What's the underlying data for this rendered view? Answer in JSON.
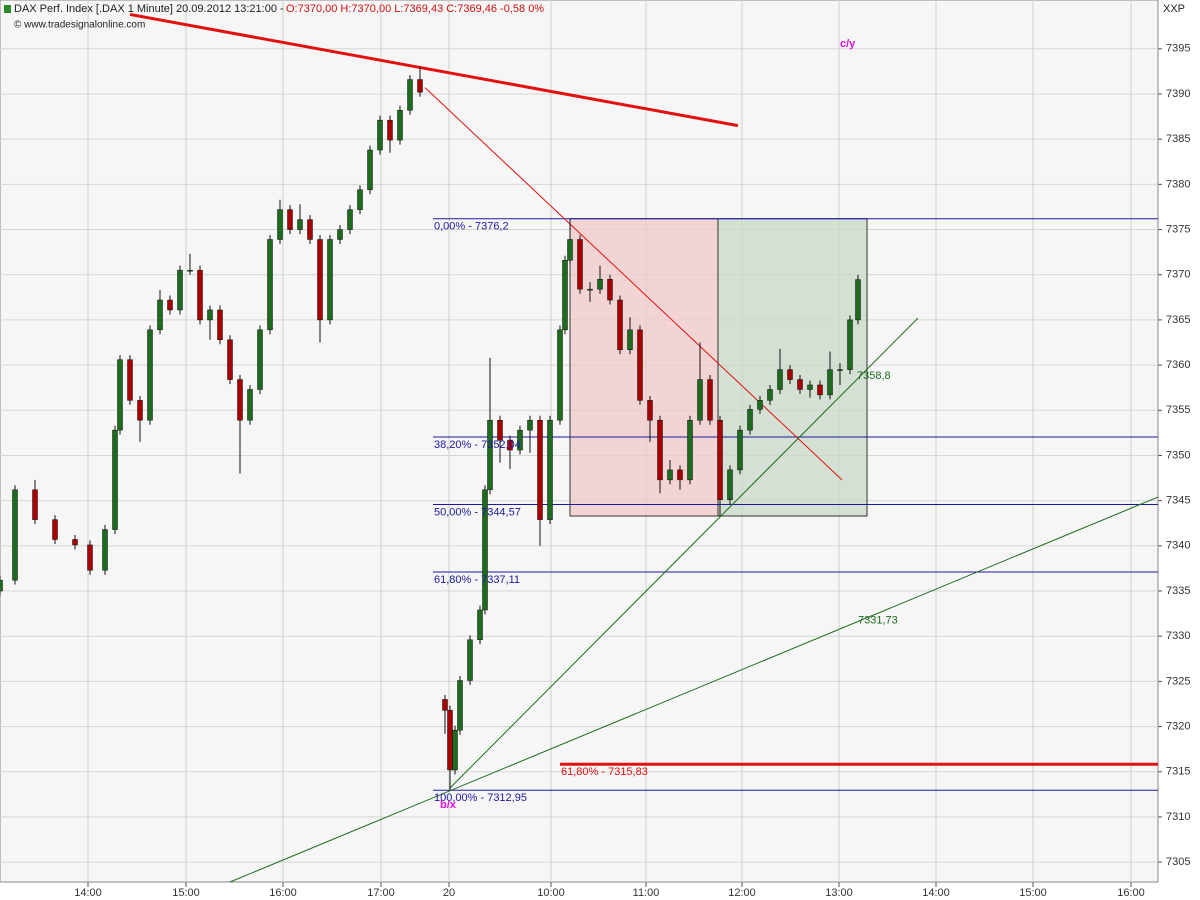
{
  "chart_data": {
    "type": "candlestick",
    "title": "DAX Perf. Index [.DAX  1 Minute] 20.09.2012 13:21:00 -",
    "subtitle": "O:7370,00 H:7370,00 L:7369,43 C:7369,46 -0,58 0%",
    "source": "© www.tradesignalonline.com",
    "symbol": "XXP",
    "xlim": [
      0,
      289.5
    ],
    "ylim": [
      7302.8,
      7400.4
    ],
    "yticks": [
      7305,
      7310,
      7315,
      7320,
      7325,
      7330,
      7335,
      7340,
      7345,
      7350,
      7355,
      7360,
      7365,
      7370,
      7375,
      7380,
      7385,
      7390,
      7395
    ],
    "xticks": [
      {
        "value": 22,
        "label": "14:00"
      },
      {
        "value": 46.5,
        "label": "15:00"
      },
      {
        "value": 70.75,
        "label": "16:00"
      },
      {
        "value": 95.25,
        "label": "17:00"
      },
      {
        "value": 112.25,
        "label": "20"
      },
      {
        "value": 137.75,
        "label": "10:00"
      },
      {
        "value": 161.5,
        "label": "11:00"
      },
      {
        "value": 185.5,
        "label": "12:00"
      },
      {
        "value": 209.75,
        "label": "13:00"
      },
      {
        "value": 234,
        "label": "14:00"
      },
      {
        "value": 258.25,
        "label": "15:00"
      },
      {
        "value": 282.75,
        "label": "16:00"
      }
    ],
    "grid": true,
    "up_color": "#1d6b1d",
    "down_color": "#a80000",
    "x": [
      0,
      3.75,
      8.75,
      13.75,
      18.75,
      22.5,
      26.25,
      28.75,
      30,
      32.5,
      35,
      37.5,
      40,
      42.5,
      45,
      47.5,
      50,
      52.5,
      55,
      57.5,
      60,
      62.5,
      65,
      67.5,
      70,
      72.5,
      75,
      77.5,
      80,
      82.5,
      85,
      87.5,
      90,
      92.5,
      95,
      97.5,
      100,
      102.5,
      105,
      111.25,
      112.5,
      113.75,
      115,
      117.5,
      120,
      121.25,
      122.5,
      125,
      127.5,
      130,
      132.5,
      135,
      137.5,
      140,
      141.25,
      142.5,
      145,
      147.5,
      150,
      152.5,
      155,
      157.5,
      160,
      162.5,
      165,
      167.5,
      170,
      172.5,
      175,
      177.5,
      180,
      182.5,
      185,
      187.5,
      190,
      192.5,
      195,
      197.5,
      200,
      202.5,
      205,
      207.5,
      210,
      212.5,
      214.5
    ],
    "open": [
      7335.0,
      7336.2,
      7346.2,
      7342.9,
      7340.7,
      7340.1,
      7337.3,
      7341.8,
      7352.8,
      7360.6,
      7356.1,
      7353.9,
      7363.9,
      7367.2,
      7366.1,
      7370.5,
      7370.5,
      7365.0,
      7366.1,
      7362.8,
      7358.4,
      7353.9,
      7357.3,
      7363.9,
      7373.9,
      7377.2,
      7375.0,
      7376.1,
      7373.9,
      7365.0,
      7373.9,
      7375.0,
      7377.2,
      7379.4,
      7383.8,
      7387.1,
      7384.9,
      7388.2,
      7391.6,
      7323.0,
      7321.8,
      7315.2,
      7319.6,
      7325.1,
      7329.6,
      7332.9,
      7346.2,
      7353.9,
      7351.7,
      7350.6,
      7352.8,
      7353.9,
      7342.9,
      7353.9,
      7363.9,
      7371.6,
      7373.9,
      7368.4,
      7368.4,
      7369.5,
      7367.2,
      7361.7,
      7363.9,
      7356.1,
      7353.9,
      7347.3,
      7348.4,
      7347.3,
      7353.9,
      7358.4,
      7353.9,
      7345.1,
      7348.4,
      7352.8,
      7355.1,
      7356.1,
      7357.3,
      7359.5,
      7358.4,
      7357.3,
      7357.8,
      7356.7,
      7359.5,
      7359.5,
      7365.0
    ],
    "high": [
      7336.7,
      7346.7,
      7347.3,
      7343.4,
      7341.2,
      7340.6,
      7342.3,
      7353.3,
      7361.1,
      7361.1,
      7356.6,
      7364.4,
      7368.3,
      7367.7,
      7371.0,
      7372.3,
      7371.0,
      7366.6,
      7366.6,
      7363.3,
      7358.9,
      7357.8,
      7364.4,
      7374.4,
      7378.3,
      7377.7,
      7377.8,
      7376.6,
      7374.4,
      7374.4,
      7375.5,
      7377.7,
      7379.9,
      7384.3,
      7387.6,
      7387.6,
      7388.7,
      7392.1,
      7393.0,
      7323.5,
      7322.3,
      7320.1,
      7325.6,
      7330.1,
      7333.4,
      7346.7,
      7360.8,
      7354.4,
      7352.2,
      7353.3,
      7354.4,
      7354.4,
      7354.4,
      7364.4,
      7372.1,
      7376.2,
      7374.4,
      7369.2,
      7371.0,
      7370.0,
      7367.7,
      7365.3,
      7364.4,
      7356.6,
      7354.4,
      7349.5,
      7348.9,
      7354.4,
      7362.5,
      7358.9,
      7354.4,
      7348.9,
      7353.3,
      7355.6,
      7356.6,
      7357.8,
      7361.8,
      7360.0,
      7358.9,
      7358.3,
      7358.3,
      7361.5,
      7360.2,
      7365.5,
      7370.0
    ],
    "low": [
      7334.5,
      7335.7,
      7342.4,
      7340.2,
      7339.6,
      7336.8,
      7336.8,
      7341.3,
      7352.3,
      7355.6,
      7351.5,
      7353.4,
      7363.4,
      7365.6,
      7365.6,
      7370.0,
      7364.5,
      7362.8,
      7362.3,
      7357.9,
      7348.0,
      7353.4,
      7356.8,
      7363.4,
      7373.4,
      7374.5,
      7374.5,
      7373.4,
      7362.5,
      7364.5,
      7373.4,
      7374.5,
      7376.7,
      7378.9,
      7383.3,
      7383.5,
      7384.4,
      7387.7,
      7389.7,
      7319.2,
      7312.95,
      7314.7,
      7319.1,
      7324.6,
      7329.1,
      7332.4,
      7345.7,
      7349.2,
      7348.5,
      7350.1,
      7350.3,
      7340.0,
      7342.4,
      7353.4,
      7363.4,
      7371.1,
      7367.9,
      7367.0,
      7367.9,
      7366.7,
      7361.2,
      7361.2,
      7355.6,
      7351.5,
      7345.8,
      7346.8,
      7346.2,
      7346.8,
      7353.4,
      7353.4,
      7343.3,
      7344.6,
      7347.9,
      7352.3,
      7354.6,
      7355.6,
      7356.8,
      7357.9,
      7356.8,
      7356.4,
      7356.2,
      7356.2,
      7357.8,
      7359.0,
      7364.5
    ],
    "close": [
      7336.2,
      7346.2,
      7342.9,
      7340.7,
      7340.1,
      7337.3,
      7341.8,
      7352.8,
      7360.6,
      7356.1,
      7353.9,
      7363.9,
      7367.2,
      7366.1,
      7370.5,
      7370.5,
      7365.0,
      7366.1,
      7362.8,
      7358.4,
      7353.9,
      7357.3,
      7363.9,
      7373.9,
      7377.2,
      7375.0,
      7376.1,
      7373.9,
      7365.0,
      7373.9,
      7375.0,
      7377.2,
      7379.4,
      7383.8,
      7387.1,
      7384.9,
      7388.2,
      7391.6,
      7390.2,
      7321.8,
      7315.2,
      7319.6,
      7325.1,
      7329.6,
      7332.9,
      7346.2,
      7353.9,
      7351.7,
      7350.6,
      7352.8,
      7353.9,
      7342.9,
      7353.9,
      7363.9,
      7371.6,
      7373.9,
      7368.4,
      7368.4,
      7369.5,
      7367.2,
      7361.7,
      7363.9,
      7356.1,
      7353.9,
      7347.3,
      7348.4,
      7347.3,
      7353.9,
      7358.4,
      7353.9,
      7345.1,
      7348.4,
      7352.8,
      7355.1,
      7356.1,
      7357.3,
      7359.5,
      7358.4,
      7357.3,
      7357.8,
      7356.7,
      7359.5,
      7359.5,
      7365.0,
      7369.46
    ],
    "levels": [
      {
        "label": "0,00% - 7376,2",
        "value": 7376.2,
        "start": 108.25,
        "color": "#1a1aa0",
        "width": 1
      },
      {
        "label": "38,20% - 7352,04",
        "value": 7352.04,
        "start": 108.25,
        "color": "#1a1aa0",
        "width": 1
      },
      {
        "label": "50,00% - 7344,57",
        "value": 7344.57,
        "start": 108.25,
        "color": "#1a1aa0",
        "width": 1
      },
      {
        "label": "61,80% - 7337,11",
        "value": 7337.11,
        "start": 108.25,
        "color": "#1a1aa0",
        "width": 1
      },
      {
        "label": "100,00% - 7312,95",
        "value": 7312.95,
        "start": 108.25,
        "color": "#1a1aa0",
        "width": 1
      },
      {
        "label": "61,80% - 7315,83",
        "value": 7315.83,
        "start": 140,
        "color": "#e31010",
        "width": 3
      }
    ],
    "boxes": [
      {
        "x": [
          142.5,
          179.5
        ],
        "y": [
          7343.3,
          7376.2
        ],
        "color": "#f2c8c8"
      },
      {
        "x": [
          179.5,
          216.75
        ],
        "y": [
          7343.3,
          7376.2
        ],
        "color": "#c8d8c8"
      }
    ],
    "trendlines": [
      {
        "x": [
          32.5,
          184.5
        ],
        "y": [
          7398.8,
          7386.5
        ],
        "color": "#e31010",
        "width": 3
      },
      {
        "x": [
          106.25,
          210.5
        ],
        "y": [
          7390.7,
          7347.3
        ],
        "color": "#e31010",
        "width": 1
      },
      {
        "x": [
          112.5,
          229.5
        ],
        "y": [
          7313.2,
          7365.2
        ],
        "color": "#1d6b1d",
        "width": 1
      },
      {
        "x": [
          57.5,
          289.5
        ],
        "y": [
          7302.8,
          7345.4
        ],
        "color": "#1d6b1d",
        "width": 1
      }
    ],
    "annotations": [
      {
        "text": "7358,8",
        "x": 214.25,
        "y": 7358.8,
        "color": "#1d6b1d",
        "size": 11
      },
      {
        "text": "7331,73",
        "x": 214.5,
        "y": 7331.73,
        "color": "#1d6b1d",
        "size": 11
      },
      {
        "text": "c/y",
        "x": 210,
        "y": 7395.5,
        "color": "#e010e0",
        "size": 19
      },
      {
        "text": "b/x",
        "x": 110,
        "y": 7311.3,
        "color": "#e010e0",
        "size": 19
      }
    ]
  }
}
